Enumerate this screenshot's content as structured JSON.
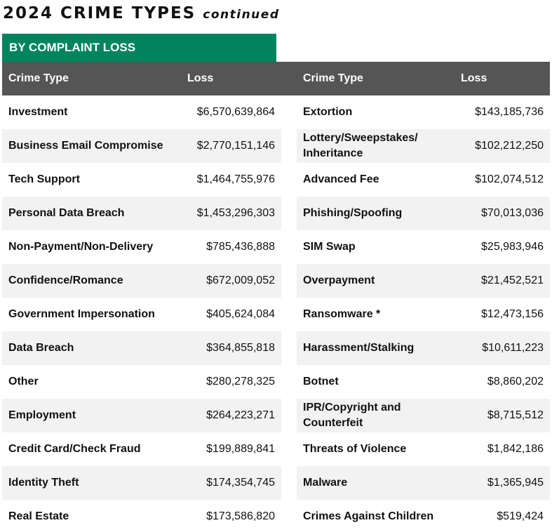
{
  "title": {
    "main": "2024 CRIME TYPES",
    "sub": "continued"
  },
  "banner": "BY COMPLAINT LOSS",
  "headers": {
    "left_type": "Crime Type",
    "left_loss": "Loss",
    "right_type": "Crime Type",
    "right_loss": "Loss"
  },
  "left": [
    {
      "type": "Investment",
      "loss": "$6,570,639,864"
    },
    {
      "type": "Business Email Compromise",
      "loss": "$2,770,151,146"
    },
    {
      "type": "Tech Support",
      "loss": "$1,464,755,976"
    },
    {
      "type": "Personal Data Breach",
      "loss": "$1,453,296,303"
    },
    {
      "type": "Non-Payment/Non-Delivery",
      "loss": "$785,436,888"
    },
    {
      "type": "Confidence/Romance",
      "loss": "$672,009,052"
    },
    {
      "type": "Government Impersonation",
      "loss": "$405,624,084"
    },
    {
      "type": "Data Breach",
      "loss": "$364,855,818"
    },
    {
      "type": "Other",
      "loss": "$280,278,325"
    },
    {
      "type": "Employment",
      "loss": "$264,223,271"
    },
    {
      "type": "Credit Card/Check Fraud",
      "loss": "$199,889,841"
    },
    {
      "type": "Identity Theft",
      "loss": "$174,354,745"
    },
    {
      "type": "Real Estate",
      "loss": "$173,586,820"
    }
  ],
  "right": [
    {
      "type": "Extortion",
      "loss": "$143,185,736"
    },
    {
      "type": "Lottery/Sweepstakes/ Inheritance",
      "loss": "$102,212,250"
    },
    {
      "type": "Advanced Fee",
      "loss": "$102,074,512"
    },
    {
      "type": "Phishing/Spoofing",
      "loss": "$70,013,036"
    },
    {
      "type": "SIM Swap",
      "loss": "$25,983,946"
    },
    {
      "type": "Overpayment",
      "loss": "$21,452,521"
    },
    {
      "type": "Ransomware *",
      "loss": "$12,473,156"
    },
    {
      "type": "Harassment/Stalking",
      "loss": "$10,611,223"
    },
    {
      "type": "Botnet",
      "loss": "$8,860,202"
    },
    {
      "type": "IPR/Copyright and Counterfeit",
      "loss": "$8,715,512"
    },
    {
      "type": "Threats of Violence",
      "loss": "$1,842,186"
    },
    {
      "type": "Malware",
      "loss": "$1,365,945"
    },
    {
      "type": "Crimes Against Children",
      "loss": "$519,424"
    }
  ]
}
